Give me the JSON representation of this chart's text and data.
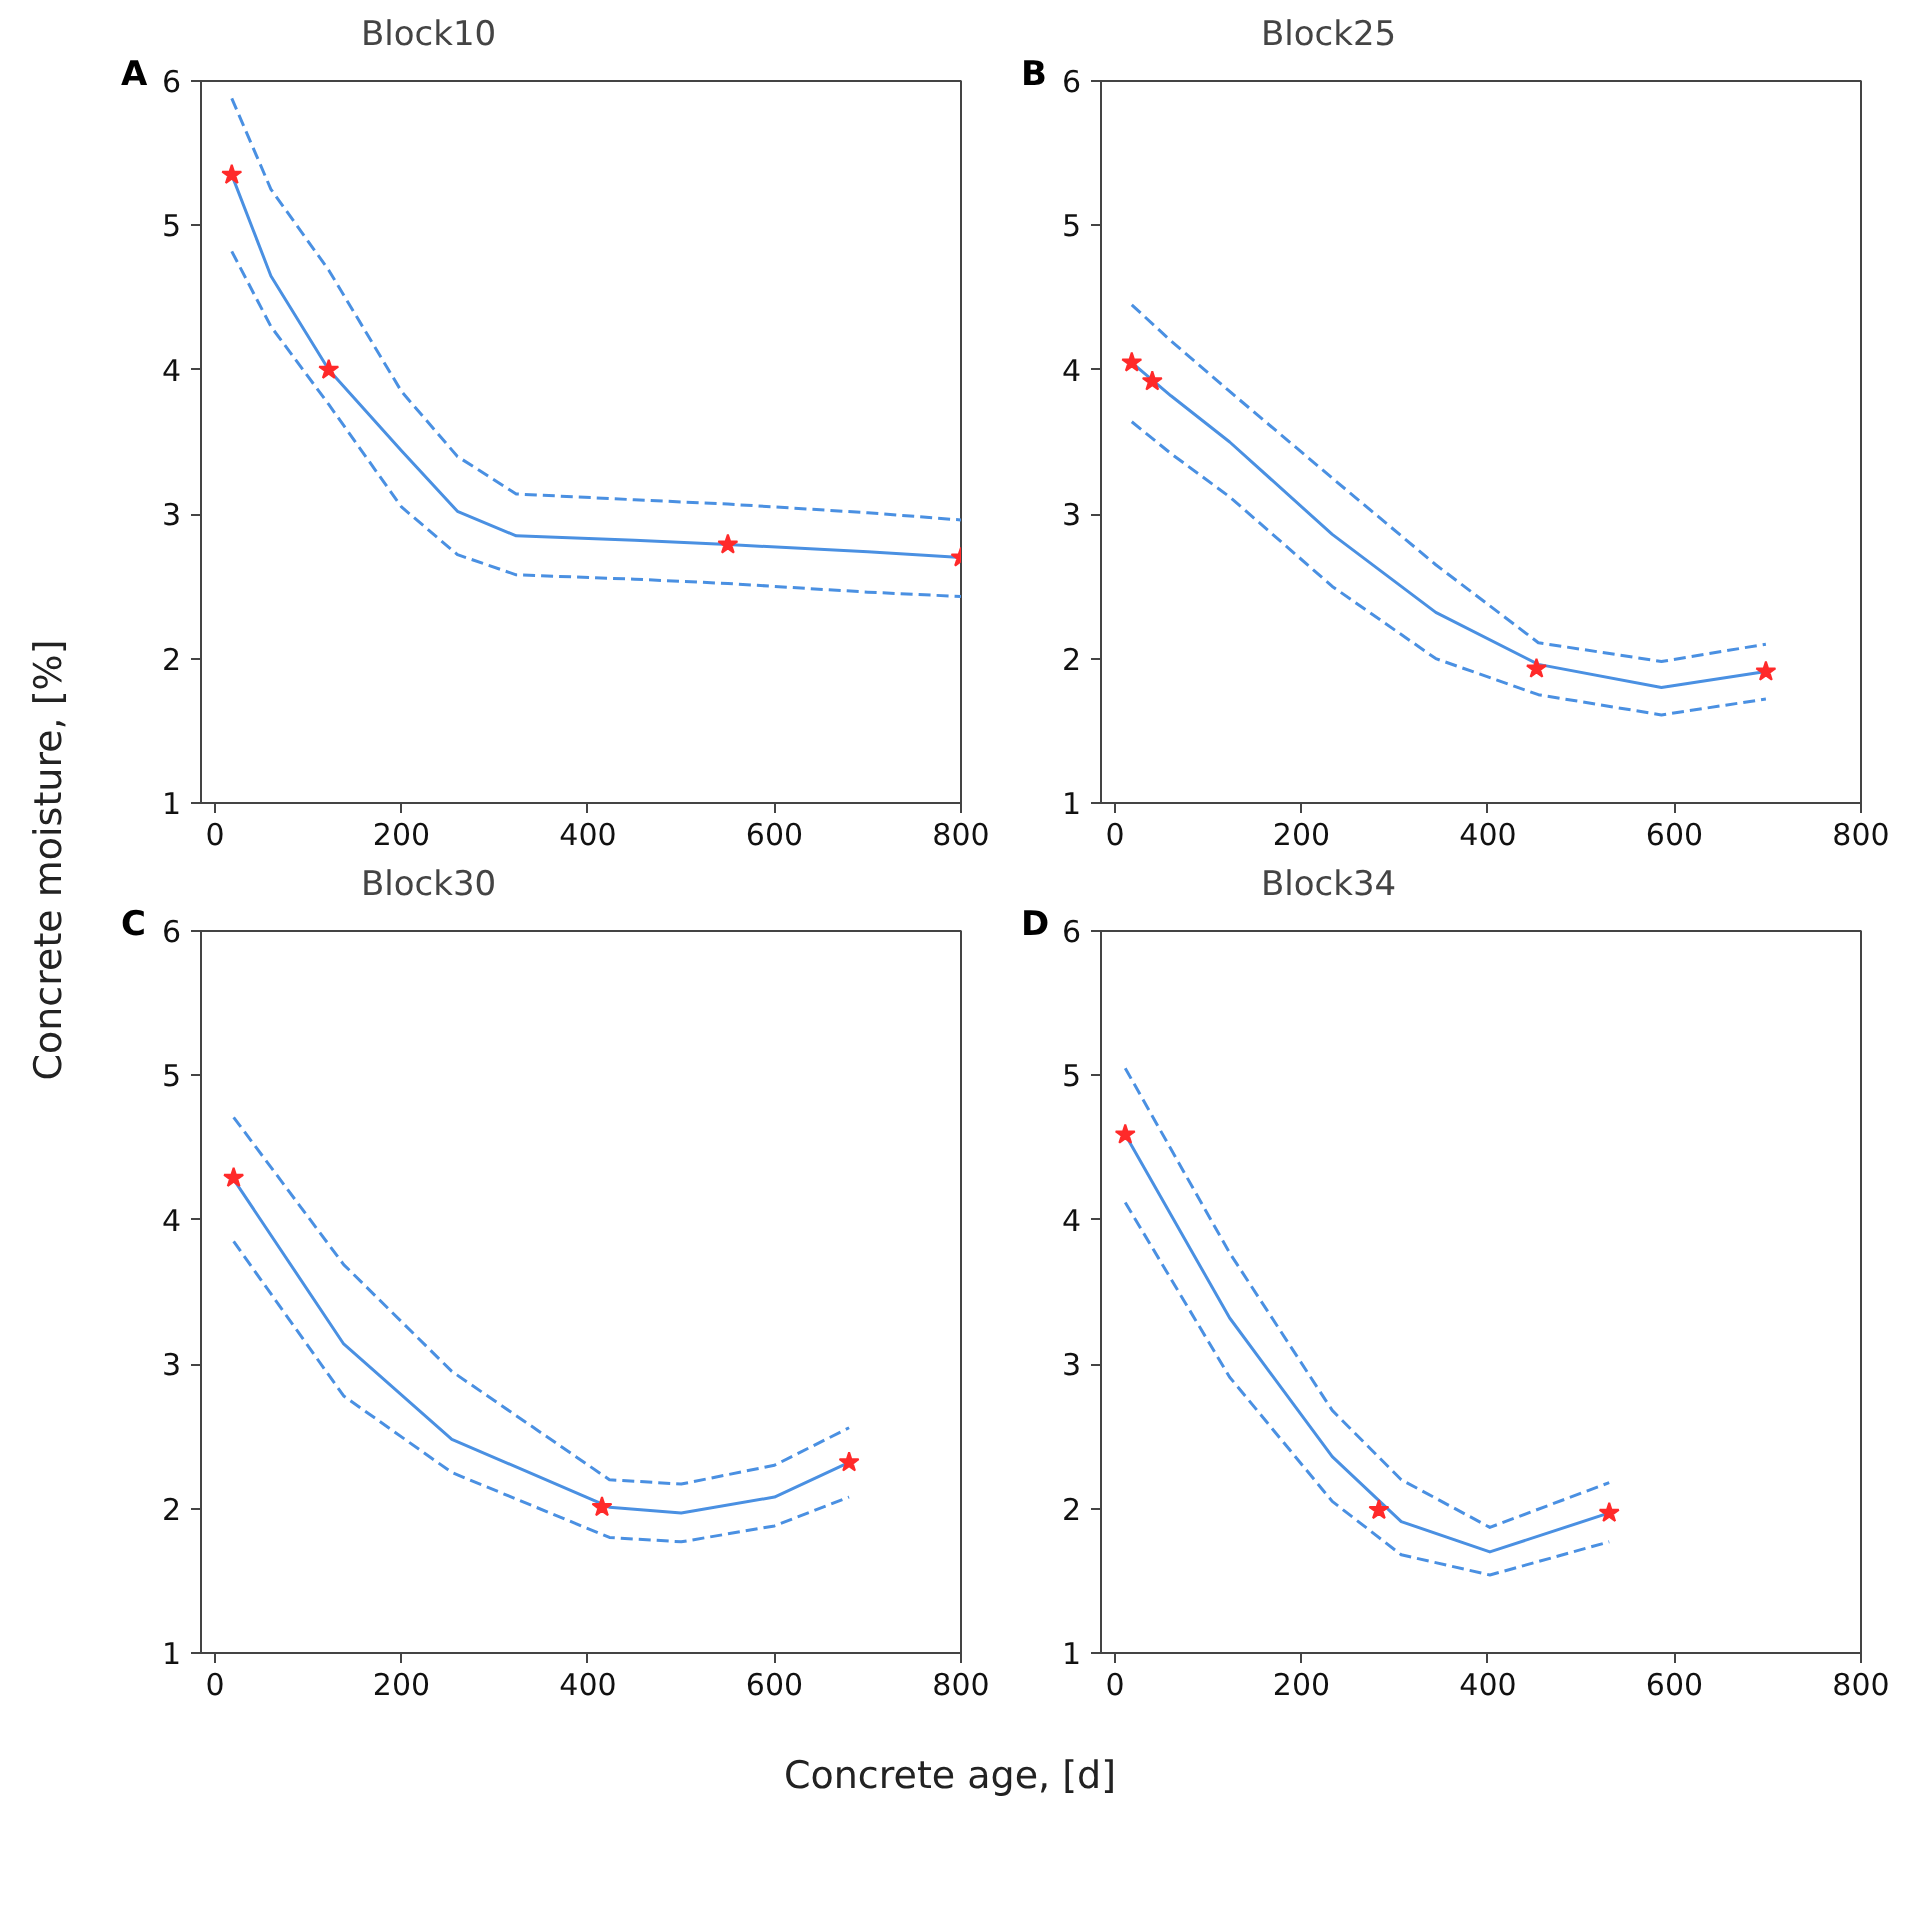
{
  "chart_data": [
    {
      "type": "line",
      "title": "Block10",
      "ylabel": "Concrete moisture, [%]",
      "annotations": [
        "A"
      ],
      "xlim": [
        -15,
        800
      ],
      "ylim": [
        1,
        6
      ],
      "xticks": [
        0,
        200,
        400,
        600,
        800
      ],
      "yticks": [
        1,
        2,
        3,
        4,
        5,
        6
      ],
      "grid": false,
      "series": [
        {
          "type": "line",
          "color": "#4a90e2",
          "line_style": "solid",
          "x": [
            18,
            60,
            122,
            200,
            260,
            323,
            450,
            550,
            700,
            800
          ],
          "values": [
            5.35,
            4.65,
            4.0,
            3.44,
            3.02,
            2.85,
            2.82,
            2.79,
            2.74,
            2.7
          ]
        },
        {
          "color": "#4a90e2",
          "line_style": "dashed",
          "x": [
            18,
            60,
            122,
            200,
            260,
            323,
            450,
            550,
            700,
            800
          ],
          "values": [
            5.88,
            5.25,
            4.69,
            3.85,
            3.4,
            3.14,
            3.1,
            3.07,
            3.01,
            2.96
          ]
        },
        {
          "color": "#4a90e2",
          "line_style": "dashed",
          "x": [
            18,
            60,
            122,
            200,
            260,
            323,
            450,
            550,
            700,
            800
          ],
          "values": [
            4.82,
            4.3,
            3.76,
            3.05,
            2.72,
            2.58,
            2.55,
            2.52,
            2.46,
            2.43
          ]
        },
        {
          "type": "scatter",
          "color": "#ff2a2a",
          "marker": "star",
          "x": [
            18,
            122,
            550,
            800
          ],
          "values": [
            5.35,
            4.0,
            2.79,
            2.7
          ]
        }
      ]
    },
    {
      "type": "line",
      "title": "Block25",
      "annotations": [
        "B"
      ],
      "xlim": [
        -15,
        800
      ],
      "ylim": [
        1,
        6
      ],
      "xticks": [
        0,
        200,
        400,
        600,
        800
      ],
      "yticks": [
        1,
        2,
        3,
        4,
        5,
        6
      ],
      "grid": false,
      "series": [
        {
          "type": "line",
          "color": "#4a90e2",
          "line_style": "solid",
          "x": [
            18,
            60,
            123,
            233,
            344,
            454,
            586,
            698
          ],
          "values": [
            4.05,
            3.82,
            3.5,
            2.86,
            2.32,
            1.96,
            1.8,
            1.91
          ]
        },
        {
          "color": "#4a90e2",
          "line_style": "dashed",
          "x": [
            18,
            60,
            123,
            233,
            344,
            454,
            586,
            698
          ],
          "values": [
            4.45,
            4.2,
            3.85,
            3.25,
            2.65,
            2.11,
            1.98,
            2.1
          ]
        },
        {
          "color": "#4a90e2",
          "line_style": "dashed",
          "x": [
            18,
            60,
            123,
            233,
            344,
            454,
            586,
            698
          ],
          "values": [
            3.64,
            3.42,
            3.12,
            2.5,
            2.0,
            1.75,
            1.61,
            1.72
          ]
        },
        {
          "type": "scatter",
          "color": "#ff2a2a",
          "marker": "star",
          "x": [
            18,
            40,
            452,
            698
          ],
          "values": [
            4.05,
            3.92,
            1.93,
            1.91
          ]
        }
      ]
    },
    {
      "type": "line",
      "title": "Block30",
      "xlabel": "Concrete age, [d]",
      "annotations": [
        "C"
      ],
      "xlim": [
        -15,
        800
      ],
      "ylim": [
        1,
        6
      ],
      "xticks": [
        0,
        200,
        400,
        600,
        800
      ],
      "yticks": [
        1,
        2,
        3,
        4,
        5,
        6
      ],
      "grid": false,
      "series": [
        {
          "type": "line",
          "color": "#4a90e2",
          "line_style": "solid",
          "x": [
            20,
            138,
            254,
            423,
            500,
            600,
            680
          ],
          "values": [
            4.28,
            3.14,
            2.48,
            2.01,
            1.97,
            2.08,
            2.32
          ]
        },
        {
          "color": "#4a90e2",
          "line_style": "dashed",
          "x": [
            20,
            138,
            254,
            423,
            500,
            600,
            680
          ],
          "values": [
            4.71,
            3.69,
            2.95,
            2.2,
            2.17,
            2.3,
            2.56
          ]
        },
        {
          "color": "#4a90e2",
          "line_style": "dashed",
          "x": [
            20,
            138,
            254,
            423,
            500,
            600,
            680
          ],
          "values": [
            3.85,
            2.78,
            2.25,
            1.8,
            1.77,
            1.88,
            2.08
          ]
        },
        {
          "type": "scatter",
          "color": "#ff2a2a",
          "marker": "star",
          "x": [
            20,
            415,
            680
          ],
          "values": [
            4.29,
            2.01,
            2.32
          ]
        }
      ]
    },
    {
      "type": "line",
      "title": "Block34",
      "annotations": [
        "D"
      ],
      "xlim": [
        -15,
        800
      ],
      "ylim": [
        1,
        6
      ],
      "xticks": [
        0,
        200,
        400,
        600,
        800
      ],
      "yticks": [
        1,
        2,
        3,
        4,
        5,
        6
      ],
      "grid": false,
      "series": [
        {
          "type": "line",
          "color": "#4a90e2",
          "line_style": "solid",
          "x": [
            11,
            123,
            233,
            307,
            402,
            530
          ],
          "values": [
            4.59,
            3.32,
            2.36,
            1.91,
            1.7,
            1.97
          ]
        },
        {
          "color": "#4a90e2",
          "line_style": "dashed",
          "x": [
            11,
            123,
            233,
            307,
            402,
            530
          ],
          "values": [
            5.05,
            3.77,
            2.68,
            2.2,
            1.87,
            2.18
          ]
        },
        {
          "color": "#4a90e2",
          "line_style": "dashed",
          "x": [
            11,
            123,
            233,
            307,
            402,
            530
          ],
          "values": [
            4.12,
            2.91,
            2.05,
            1.68,
            1.54,
            1.77
          ]
        },
        {
          "type": "scatter",
          "color": "#ff2a2a",
          "marker": "star",
          "x": [
            11,
            283,
            530
          ],
          "values": [
            4.59,
            1.99,
            1.97
          ]
        }
      ]
    }
  ]
}
